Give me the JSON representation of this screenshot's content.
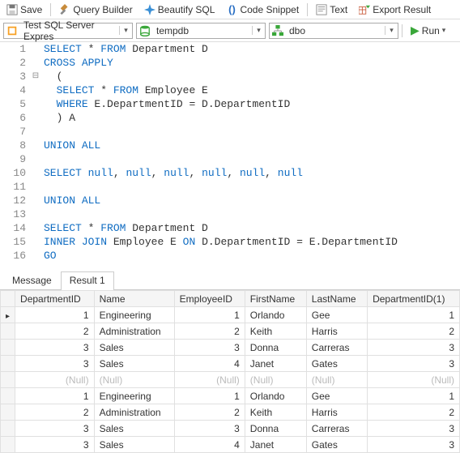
{
  "toolbar": {
    "save": "Save",
    "query_builder": "Query Builder",
    "beautify": "Beautify SQL",
    "snippet": "Code Snippet",
    "text": "Text",
    "export": "Export Result"
  },
  "connection": {
    "server_icon_bg": "#f7a023",
    "server_label": "Test SQL Server Expres",
    "db_icon_color": "#3aa73a",
    "db_label": "tempdb",
    "schema_icon_color": "#3aa73a",
    "schema_label": "dbo",
    "run_label": "Run"
  },
  "code_lines": [
    {
      "n": 1,
      "html": "<span class='kw'>SELECT</span> * <span class='kw'>FROM</span> Department D"
    },
    {
      "n": 2,
      "html": "<span class='kw'>CROSS</span> <span class='kw'>APPLY</span>"
    },
    {
      "n": 3,
      "fold": "⊟",
      "html": "  ("
    },
    {
      "n": 4,
      "html": "  <span class='kw'>SELECT</span> * <span class='kw'>FROM</span> Employee E"
    },
    {
      "n": 5,
      "html": "  <span class='kw'>WHERE</span> E.DepartmentID = D.DepartmentID"
    },
    {
      "n": 6,
      "html": "  ) A"
    },
    {
      "n": 7,
      "html": ""
    },
    {
      "n": 8,
      "html": "<span class='kw'>UNION</span> <span class='kw'>ALL</span>"
    },
    {
      "n": 9,
      "html": ""
    },
    {
      "n": 10,
      "html": "<span class='kw'>SELECT</span> <span class='nul'>null</span>, <span class='nul'>null</span>, <span class='nul'>null</span>, <span class='nul'>null</span>, <span class='nul'>null</span>, <span class='nul'>null</span>"
    },
    {
      "n": 11,
      "html": ""
    },
    {
      "n": 12,
      "html": "<span class='kw'>UNION</span> <span class='kw'>ALL</span>"
    },
    {
      "n": 13,
      "html": ""
    },
    {
      "n": 14,
      "html": "<span class='kw'>SELECT</span> * <span class='kw'>FROM</span> Department D"
    },
    {
      "n": 15,
      "html": "<span class='kw'>INNER</span> <span class='kw'>JOIN</span> Employee E <span class='kw'>ON</span> D.DepartmentID = E.DepartmentID"
    },
    {
      "n": 16,
      "html": "<span class='kw'>GO</span>"
    }
  ],
  "tabs": {
    "message": "Message",
    "result": "Result 1"
  },
  "grid": {
    "columns": [
      "DepartmentID",
      "Name",
      "EmployeeID",
      "FirstName",
      "LastName",
      "DepartmentID(1)"
    ],
    "rows": [
      [
        "1",
        "Engineering",
        "1",
        "Orlando",
        "Gee",
        "1"
      ],
      [
        "2",
        "Administration",
        "2",
        "Keith",
        "Harris",
        "2"
      ],
      [
        "3",
        "Sales",
        "3",
        "Donna",
        "Carreras",
        "3"
      ],
      [
        "3",
        "Sales",
        "4",
        "Janet",
        "Gates",
        "3"
      ],
      [
        null,
        null,
        null,
        null,
        null,
        null
      ],
      [
        "1",
        "Engineering",
        "1",
        "Orlando",
        "Gee",
        "1"
      ],
      [
        "2",
        "Administration",
        "2",
        "Keith",
        "Harris",
        "2"
      ],
      [
        "3",
        "Sales",
        "3",
        "Donna",
        "Carreras",
        "3"
      ],
      [
        "3",
        "Sales",
        "4",
        "Janet",
        "Gates",
        "3"
      ]
    ],
    "null_text": "(Null)",
    "numeric_cols": [
      0,
      2,
      5
    ]
  }
}
